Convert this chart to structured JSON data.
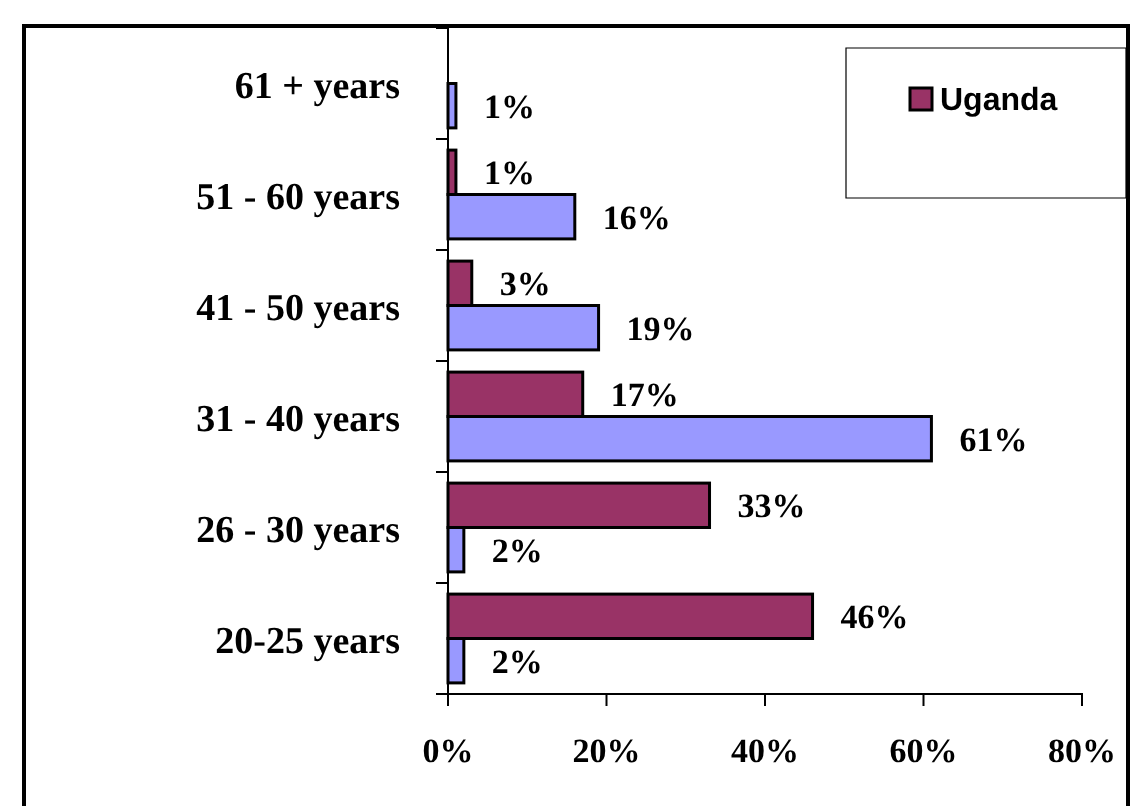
{
  "chart_data": {
    "type": "bar",
    "orientation": "horizontal",
    "categories": [
      "61 + years",
      "51 - 60 years",
      "41 - 50 years",
      "31 - 40 years",
      "26 - 30 years",
      "20-25 years"
    ],
    "series": [
      {
        "name": "Uganda",
        "color": "#993366",
        "values": [
          null,
          1,
          3,
          17,
          33,
          46
        ],
        "value_labels": [
          null,
          "1%",
          "3%",
          "17%",
          "33%",
          "46%"
        ]
      },
      {
        "color": "#9999ff",
        "values": [
          1,
          16,
          19,
          61,
          2,
          2
        ],
        "value_labels": [
          "1%",
          "16%",
          "19%",
          "61%",
          "2%",
          "2%"
        ]
      }
    ],
    "xlim": [
      0,
      80
    ],
    "xticks": [
      {
        "value": 0,
        "label": "0%"
      },
      {
        "value": 20,
        "label": "20%"
      },
      {
        "value": 40,
        "label": "40%"
      },
      {
        "value": 60,
        "label": "60%"
      },
      {
        "value": 80,
        "label": "80%"
      }
    ],
    "grid": false,
    "legend": "top right"
  }
}
